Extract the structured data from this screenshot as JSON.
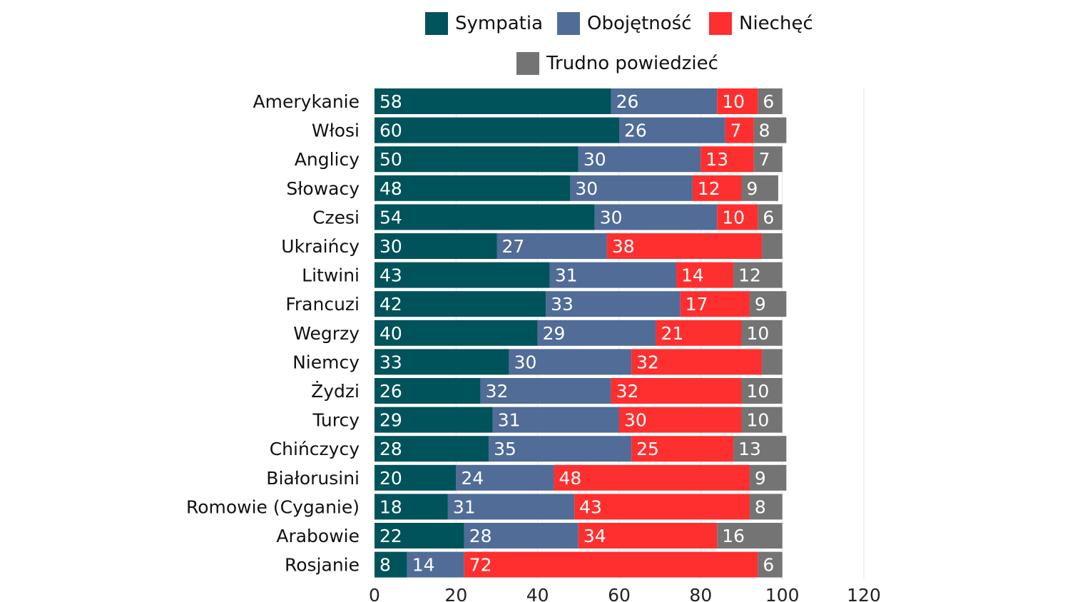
{
  "chart_data": {
    "type": "bar",
    "orientation": "horizontal",
    "stacked": true,
    "title": "",
    "xlabel": "",
    "ylabel": "",
    "xlim": [
      0,
      120
    ],
    "xticks": [
      0,
      20,
      40,
      60,
      80,
      100,
      120
    ],
    "grid": true,
    "legend_position": "top",
    "categories": [
      "Amerykanie",
      "Włosi",
      "Anglicy",
      "Słowacy",
      "Czesi",
      "Ukraińcy",
      "Litwini",
      "Francuzi",
      "Wegrzy",
      "Niemcy",
      "Żydzi",
      "Turcy",
      "Chińczycy",
      "Białorusini",
      "Romowie (Cyganie)",
      "Arabowie",
      "Rosjanie"
    ],
    "series": [
      {
        "name": "Sympatia",
        "color": "#00535a",
        "values": [
          58,
          60,
          50,
          48,
          54,
          30,
          43,
          42,
          40,
          33,
          26,
          29,
          28,
          20,
          18,
          22,
          8
        ],
        "labels": [
          "58",
          "60",
          "50",
          "48",
          "54",
          "30",
          "43",
          "42",
          "40",
          "33",
          "26",
          "29",
          "28",
          "20",
          "18",
          "22",
          "8"
        ]
      },
      {
        "name": "Obojętność",
        "color": "#506c97",
        "values": [
          26,
          26,
          30,
          30,
          30,
          27,
          31,
          33,
          29,
          30,
          32,
          31,
          35,
          24,
          31,
          28,
          14
        ],
        "labels": [
          "26",
          "26",
          "30",
          "30",
          "30",
          "27",
          "31",
          "33",
          "29",
          "30",
          "32",
          "31",
          "35",
          "24",
          "31",
          "28",
          "14"
        ]
      },
      {
        "name": "Niechęć",
        "color": "#fe2f2f",
        "values": [
          10,
          7,
          13,
          12,
          10,
          38,
          14,
          17,
          21,
          32,
          32,
          30,
          25,
          48,
          43,
          34,
          72
        ],
        "labels": [
          "10",
          "7",
          "13",
          "12",
          "10",
          "38",
          "14",
          "17",
          "21",
          "32",
          "32",
          "30",
          "25",
          "48",
          "43",
          "34",
          "72"
        ]
      },
      {
        "name": "Trudno powiedzieć",
        "color": "#747474",
        "values": [
          6,
          8,
          7,
          9,
          6,
          5,
          12,
          9,
          10,
          5,
          10,
          10,
          13,
          9,
          8,
          16,
          6
        ],
        "labels": [
          "6",
          "8",
          "7",
          "9",
          "6",
          "",
          "12",
          "9",
          "10",
          "",
          "10",
          "10",
          "13",
          "9",
          "8",
          "16",
          "6"
        ]
      }
    ]
  }
}
